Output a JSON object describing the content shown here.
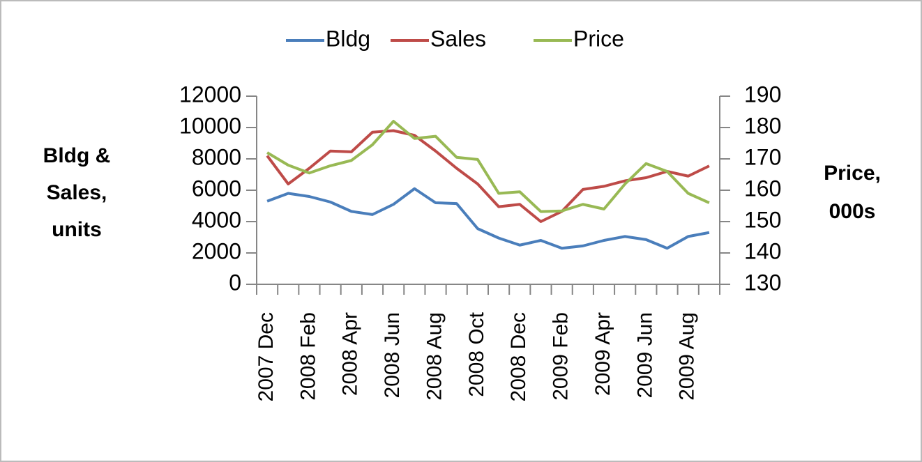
{
  "chart_data": {
    "type": "line",
    "categories": [
      "2007 Dec",
      null,
      "2008 Feb",
      null,
      "2008 Apr",
      null,
      "2008 Jun",
      null,
      "2008 Aug",
      null,
      "2008 Oct",
      null,
      "2008 Dec",
      null,
      "2009 Feb",
      null,
      "2009 Apr",
      null,
      "2009 Jun",
      null,
      "2009 Aug",
      null
    ],
    "y_label": [
      "Bldg &",
      "Sales,",
      "units"
    ],
    "y2_label": [
      "Price,",
      "000s"
    ],
    "ylim": [
      0,
      12000
    ],
    "yticks": [
      0,
      2000,
      4000,
      6000,
      8000,
      10000,
      12000
    ],
    "y2lim": [
      130,
      190
    ],
    "y2ticks": [
      130,
      140,
      150,
      160,
      170,
      180,
      190
    ],
    "legend": "top",
    "series": [
      {
        "name": "Bldg",
        "color": "#4a7ebb",
        "values": [
          5300,
          5800,
          5600,
          5250,
          4650,
          4450,
          5100,
          6100,
          5200,
          5150,
          3550,
          2950,
          2500,
          2800,
          2300,
          2450,
          2800,
          3050,
          2850,
          2300,
          3050,
          3300
        ]
      },
      {
        "name": "Sales",
        "color": "#be4b48",
        "values": [
          8200,
          6400,
          7400,
          8500,
          8450,
          9700,
          9800,
          9500,
          8500,
          7400,
          6400,
          4950,
          5100,
          4000,
          4650,
          6050,
          6250,
          6600,
          6800,
          7200,
          6900,
          7550
        ]
      },
      {
        "name": "Price",
        "color": "#98b954",
        "axis": "y2",
        "values": [
          172,
          168,
          165.5,
          167.8,
          169.5,
          174.5,
          182,
          176.5,
          177.2,
          170.5,
          169.8,
          159,
          159.5,
          153.2,
          153.4,
          155.5,
          154,
          162,
          168.5,
          166,
          159,
          156
        ]
      }
    ]
  }
}
